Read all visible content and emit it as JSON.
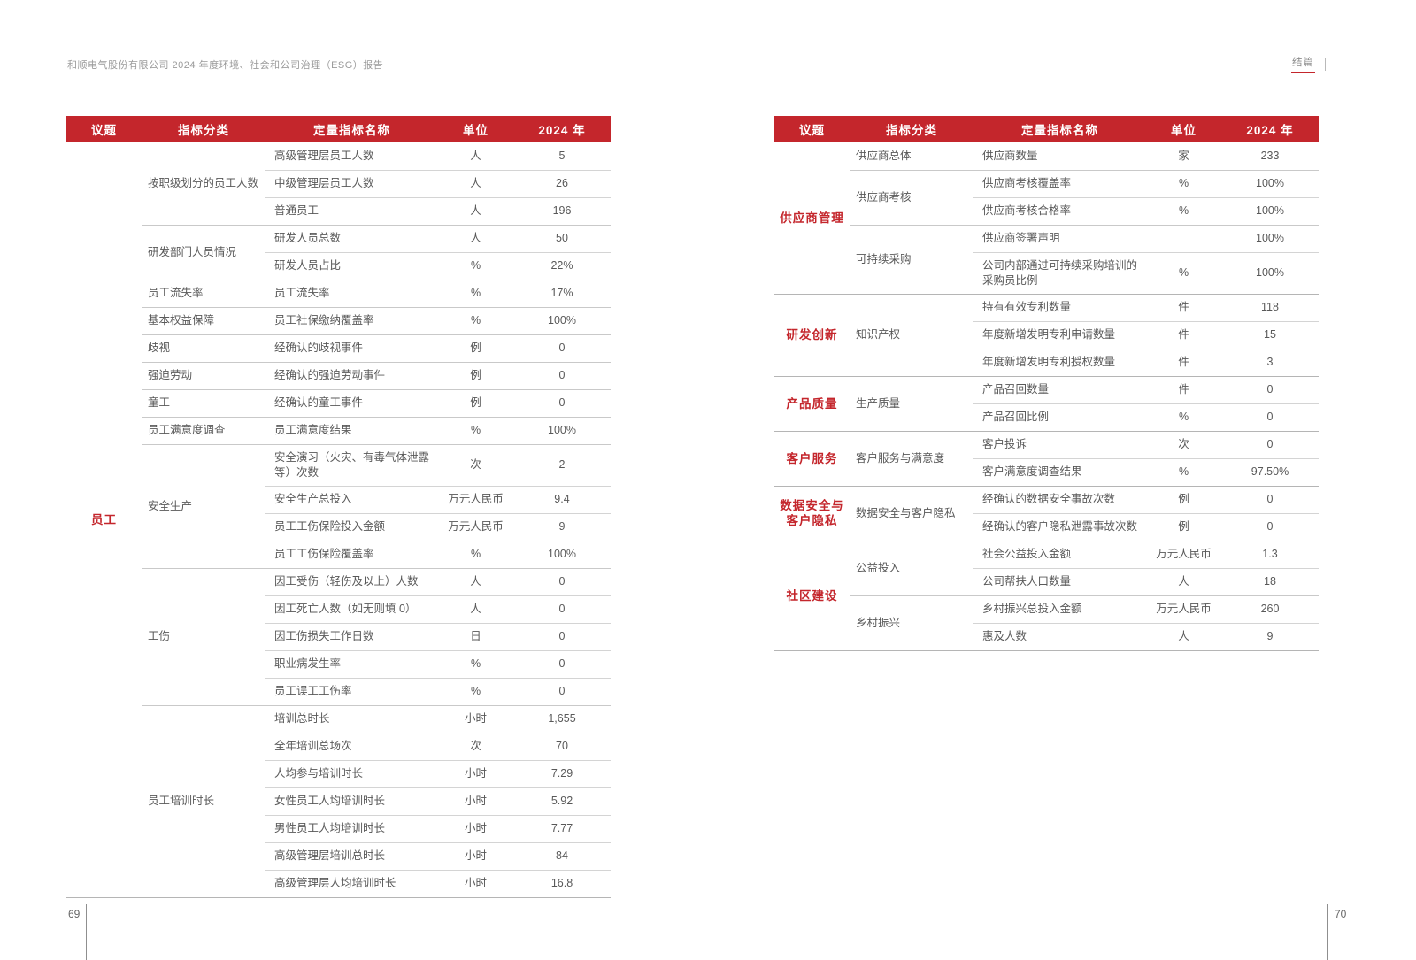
{
  "meta": {
    "report_title": "和顺电气股份有限公司 2024 年度环境、社会和公司治理（ESG）报告",
    "chapter_label": "结篇",
    "page_number_left": "69",
    "page_number_right": "70"
  },
  "colors": {
    "accent_red": "#C4262C",
    "header_text": "#FFFFFF"
  },
  "table_columns": [
    "议题",
    "指标分类",
    "定量指标名称",
    "单位",
    "2024 年"
  ],
  "tables": [
    {
      "name": "employee-metrics",
      "topics": [
        {
          "topic": "员工",
          "groups": [
            {
              "category": "按职级划分的员工人数",
              "rows": [
                {
                  "metric": "高级管理层员工人数",
                  "unit": "人",
                  "value": "5"
                },
                {
                  "metric": "中级管理层员工人数",
                  "unit": "人",
                  "value": "26"
                },
                {
                  "metric": "普通员工",
                  "unit": "人",
                  "value": "196"
                }
              ]
            },
            {
              "category": "研发部门人员情况",
              "rows": [
                {
                  "metric": "研发人员总数",
                  "unit": "人",
                  "value": "50"
                },
                {
                  "metric": "研发人员占比",
                  "unit": "%",
                  "value": "22%"
                }
              ]
            },
            {
              "category": "员工流失率",
              "rows": [
                {
                  "metric": "员工流失率",
                  "unit": "%",
                  "value": "17%"
                }
              ]
            },
            {
              "category": "基本权益保障",
              "rows": [
                {
                  "metric": "员工社保缴纳覆盖率",
                  "unit": "%",
                  "value": "100%"
                }
              ]
            },
            {
              "category": "歧视",
              "rows": [
                {
                  "metric": "经确认的歧视事件",
                  "unit": "例",
                  "value": "0"
                }
              ]
            },
            {
              "category": "强迫劳动",
              "rows": [
                {
                  "metric": "经确认的强迫劳动事件",
                  "unit": "例",
                  "value": "0"
                }
              ]
            },
            {
              "category": "童工",
              "rows": [
                {
                  "metric": "经确认的童工事件",
                  "unit": "例",
                  "value": "0"
                }
              ]
            },
            {
              "category": "员工满意度调查",
              "rows": [
                {
                  "metric": "员工满意度结果",
                  "unit": "%",
                  "value": "100%"
                }
              ]
            },
            {
              "category": "安全生产",
              "rows": [
                {
                  "metric": "安全演习（火灾、有毒气体泄露等）次数",
                  "unit": "次",
                  "value": "2"
                },
                {
                  "metric": "安全生产总投入",
                  "unit": "万元人民币",
                  "value": "9.4"
                },
                {
                  "metric": "员工工伤保险投入金额",
                  "unit": "万元人民币",
                  "value": "9"
                },
                {
                  "metric": "员工工伤保险覆盖率",
                  "unit": "%",
                  "value": "100%"
                }
              ]
            },
            {
              "category": "工伤",
              "rows": [
                {
                  "metric": "因工受伤（轻伤及以上）人数",
                  "unit": "人",
                  "value": "0"
                },
                {
                  "metric": "因工死亡人数（如无则填 0）",
                  "unit": "人",
                  "value": "0"
                },
                {
                  "metric": "因工伤损失工作日数",
                  "unit": "日",
                  "value": "0"
                },
                {
                  "metric": "职业病发生率",
                  "unit": "%",
                  "value": "0"
                },
                {
                  "metric": "员工误工工伤率",
                  "unit": "%",
                  "value": "0"
                }
              ]
            },
            {
              "category": "员工培训时长",
              "rows": [
                {
                  "metric": "培训总时长",
                  "unit": "小时",
                  "value": "1,655"
                },
                {
                  "metric": "全年培训总场次",
                  "unit": "次",
                  "value": "70"
                },
                {
                  "metric": "人均参与培训时长",
                  "unit": "小时",
                  "value": "7.29"
                },
                {
                  "metric": "女性员工人均培训时长",
                  "unit": "小时",
                  "value": "5.92"
                },
                {
                  "metric": "男性员工人均培训时长",
                  "unit": "小时",
                  "value": "7.77"
                },
                {
                  "metric": "高级管理层培训总时长",
                  "unit": "小时",
                  "value": "84"
                },
                {
                  "metric": "高级管理层人均培训时长",
                  "unit": "小时",
                  "value": "16.8"
                }
              ]
            }
          ]
        }
      ]
    },
    {
      "name": "supplier-and-governance-metrics",
      "topics": [
        {
          "topic": "供应商管理",
          "groups": [
            {
              "category": "供应商总体",
              "rows": [
                {
                  "metric": "供应商数量",
                  "unit": "家",
                  "value": "233"
                }
              ]
            },
            {
              "category": "供应商考核",
              "rows": [
                {
                  "metric": "供应商考核覆盖率",
                  "unit": "%",
                  "value": "100%"
                },
                {
                  "metric": "供应商考核合格率",
                  "unit": "%",
                  "value": "100%"
                }
              ]
            },
            {
              "category": "可持续采购",
              "rows": [
                {
                  "metric": "供应商签署声明",
                  "unit": "",
                  "value": "100%"
                },
                {
                  "metric": "公司内部通过可持续采购培训的采购员比例",
                  "unit": "%",
                  "value": "100%"
                }
              ]
            }
          ]
        },
        {
          "topic": "研发创新",
          "groups": [
            {
              "category": "知识产权",
              "rows": [
                {
                  "metric": "持有有效专利数量",
                  "unit": "件",
                  "value": "118"
                },
                {
                  "metric": "年度新增发明专利申请数量",
                  "unit": "件",
                  "value": "15"
                },
                {
                  "metric": "年度新增发明专利授权数量",
                  "unit": "件",
                  "value": "3"
                }
              ]
            }
          ]
        },
        {
          "topic": "产品质量",
          "groups": [
            {
              "category": "生产质量",
              "rows": [
                {
                  "metric": "产品召回数量",
                  "unit": "件",
                  "value": "0"
                },
                {
                  "metric": "产品召回比例",
                  "unit": "%",
                  "value": "0"
                }
              ]
            }
          ]
        },
        {
          "topic": "客户服务",
          "groups": [
            {
              "category": "客户服务与满意度",
              "rows": [
                {
                  "metric": "客户投诉",
                  "unit": "次",
                  "value": "0"
                },
                {
                  "metric": "客户满意度调查结果",
                  "unit": "%",
                  "value": "97.50%"
                }
              ]
            }
          ]
        },
        {
          "topic": "数据安全与客户隐私",
          "groups": [
            {
              "category": "数据安全与客户隐私",
              "rows": [
                {
                  "metric": "经确认的数据安全事故次数",
                  "unit": "例",
                  "value": "0"
                },
                {
                  "metric": "经确认的客户隐私泄露事故次数",
                  "unit": "例",
                  "value": "0"
                }
              ]
            }
          ]
        },
        {
          "topic": "社区建设",
          "groups": [
            {
              "category": "公益投入",
              "rows": [
                {
                  "metric": "社会公益投入金额",
                  "unit": "万元人民币",
                  "value": "1.3"
                },
                {
                  "metric": "公司帮扶人口数量",
                  "unit": "人",
                  "value": "18"
                }
              ]
            },
            {
              "category": "乡村振兴",
              "rows": [
                {
                  "metric": "乡村振兴总投入金额",
                  "unit": "万元人民币",
                  "value": "260"
                },
                {
                  "metric": "惠及人数",
                  "unit": "人",
                  "value": "9"
                }
              ]
            }
          ]
        }
      ]
    }
  ]
}
